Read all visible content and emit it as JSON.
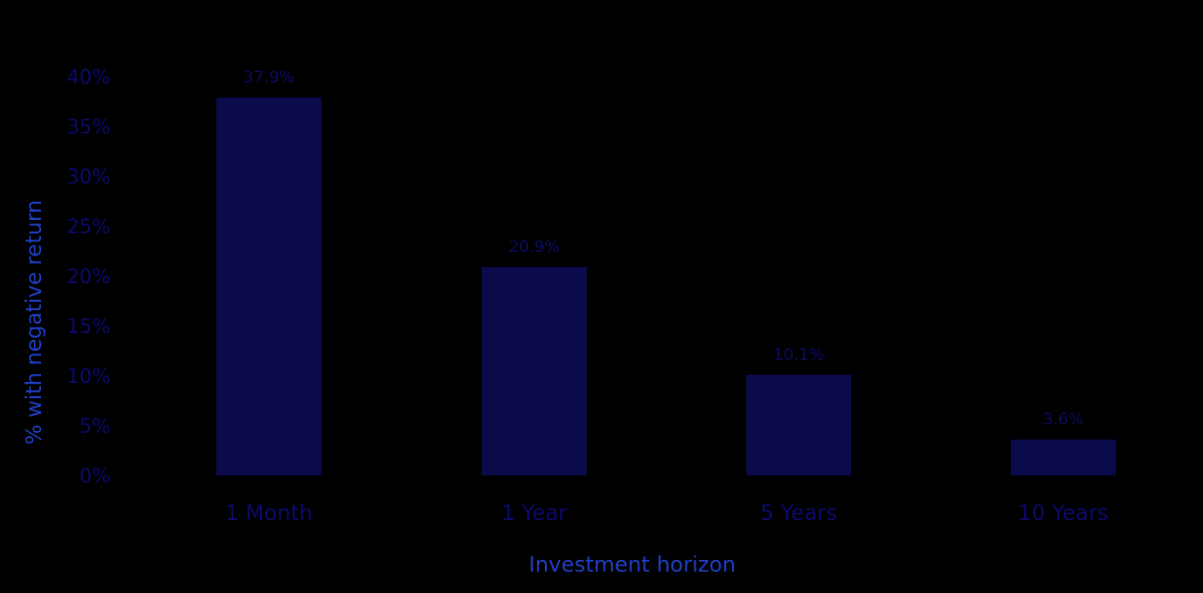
{
  "colors": {
    "background": "#000000",
    "bar": "#0b0a4a",
    "tick_text": "#0c0a6e",
    "data_label_text": "#0d0b62",
    "axis_title_text": "#1f3fc6"
  },
  "chart_data": {
    "type": "bar",
    "categories": [
      "1 Month",
      "1 Year",
      "5 Years",
      "10 Years"
    ],
    "values": [
      37.9,
      20.9,
      10.1,
      3.6
    ],
    "data_labels": [
      "37.9%",
      "20.9%",
      "10.1%",
      "3.6%"
    ],
    "yticks": [
      "0%",
      "5%",
      "10%",
      "15%",
      "20%",
      "25%",
      "30%",
      "35%",
      "40%"
    ],
    "ytick_values": [
      0,
      5,
      10,
      15,
      20,
      25,
      30,
      35,
      40
    ],
    "ylim": [
      0,
      40
    ],
    "xlabel": "Investment horizon",
    "ylabel": "% with negative return",
    "grid": false,
    "legend": "none"
  }
}
